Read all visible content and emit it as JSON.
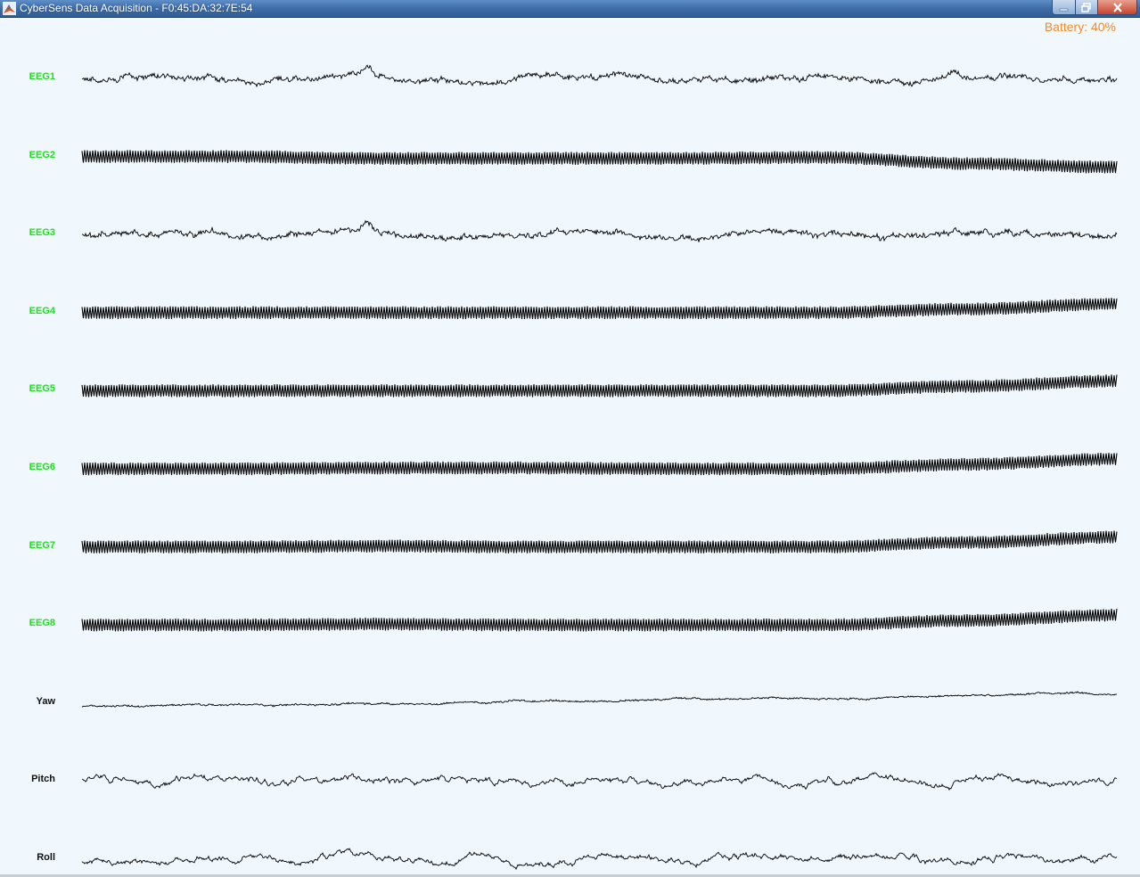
{
  "window": {
    "title": "CyberSens Data Acquisition - F0:45:DA:32:7E:54",
    "icon": "matlab-icon",
    "controls": [
      "minimize-icon",
      "restore-icon",
      "close-icon"
    ]
  },
  "status": {
    "battery_text": "Battery: 40%",
    "battery_level_percent": 40,
    "battery_color": "#f28c28"
  },
  "colors": {
    "background": "#f0f7fd",
    "eeg_label": "#22dd22",
    "motion_label": "#111111",
    "trace": "#000000"
  },
  "channels": [
    {
      "label": "EEG1",
      "kind": "eeg",
      "style": "noisy",
      "trend": [
        0,
        0,
        0,
        0,
        0,
        0,
        0,
        0
      ]
    },
    {
      "label": "EEG2",
      "kind": "eeg",
      "style": "dense",
      "trend": [
        0,
        0,
        2,
        2,
        2,
        1,
        8,
        12
      ]
    },
    {
      "label": "EEG3",
      "kind": "eeg",
      "style": "noisy",
      "trend": [
        0,
        0,
        0,
        0,
        0,
        0,
        0,
        0
      ]
    },
    {
      "label": "EEG4",
      "kind": "eeg",
      "style": "dense",
      "trend": [
        0,
        0,
        0,
        0,
        0,
        0,
        -4,
        -10
      ]
    },
    {
      "label": "EEG5",
      "kind": "eeg",
      "style": "dense",
      "trend": [
        0,
        0,
        0,
        0,
        0,
        0,
        -5,
        -11
      ]
    },
    {
      "label": "EEG6",
      "kind": "eeg",
      "style": "dense",
      "trend": [
        0,
        0,
        -1,
        -1,
        0,
        0,
        -5,
        -11
      ]
    },
    {
      "label": "EEG7",
      "kind": "eeg",
      "style": "dense",
      "trend": [
        0,
        0,
        -1,
        0,
        0,
        0,
        -5,
        -11
      ]
    },
    {
      "label": "EEG8",
      "kind": "eeg",
      "style": "dense",
      "trend": [
        0,
        0,
        -1,
        0,
        0,
        0,
        -5,
        -11
      ]
    },
    {
      "label": "Yaw",
      "kind": "motion",
      "style": "smooth",
      "trend": [
        4,
        3,
        1,
        -1,
        -4,
        -6,
        -8,
        -10
      ]
    },
    {
      "label": "Pitch",
      "kind": "motion",
      "style": "wavy",
      "trend": [
        0,
        0,
        0,
        0,
        0,
        0,
        0,
        0
      ]
    },
    {
      "label": "Roll",
      "kind": "motion",
      "style": "wavy",
      "trend": [
        4,
        0,
        -2,
        0,
        0,
        -2,
        0,
        -2
      ]
    }
  ]
}
